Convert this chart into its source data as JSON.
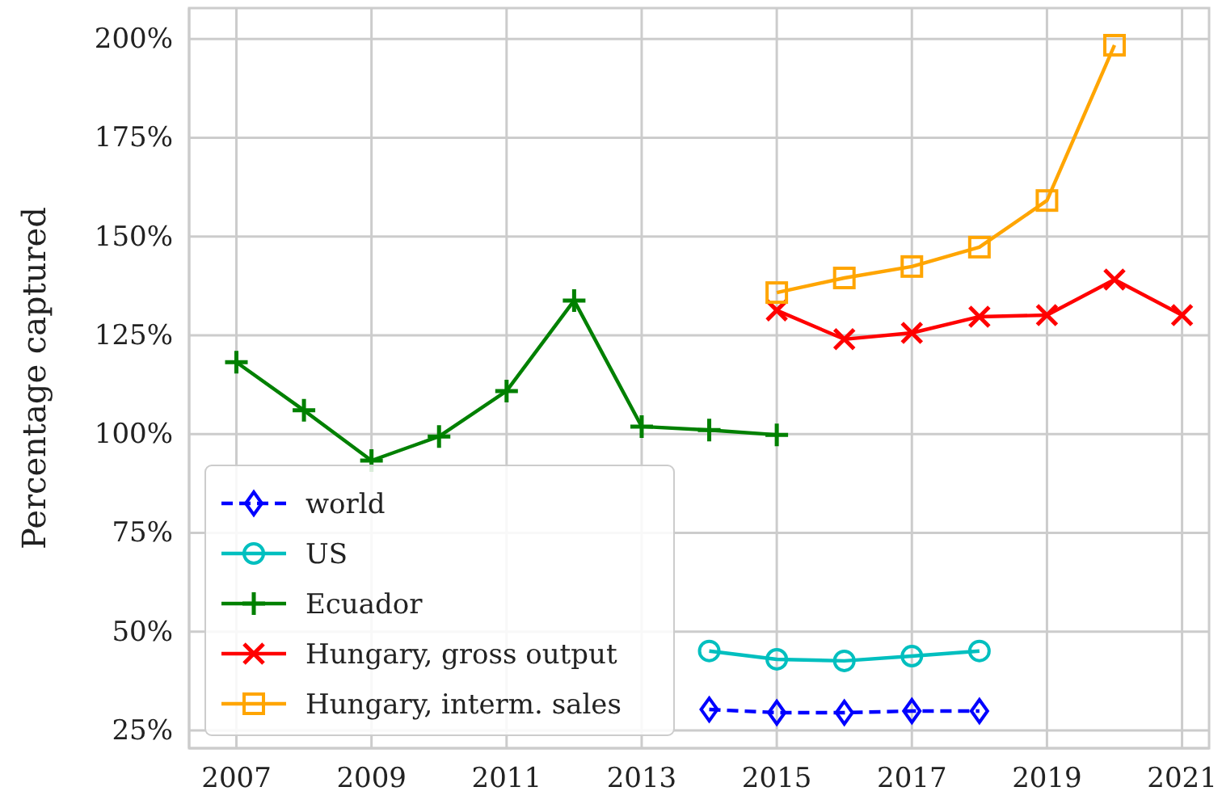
{
  "chart_data": {
    "type": "line",
    "ylabel": "Percentage captured",
    "xlim": [
      2006.3,
      2021.4
    ],
    "ylim": [
      20.5,
      207.8
    ],
    "xticks": [
      2007,
      2009,
      2011,
      2013,
      2015,
      2017,
      2019,
      2021
    ],
    "yticks": [
      {
        "value": 25,
        "label": "25%"
      },
      {
        "value": 50,
        "label": "50%"
      },
      {
        "value": 75,
        "label": "75%"
      },
      {
        "value": 100,
        "label": "100%"
      },
      {
        "value": 125,
        "label": "125%"
      },
      {
        "value": 150,
        "label": "150%"
      },
      {
        "value": 175,
        "label": "175%"
      },
      {
        "value": 200,
        "label": "200%"
      }
    ],
    "grid": true,
    "legend": "bottom left",
    "series": [
      {
        "name": "world",
        "color": "#0000ff",
        "marker": "diamond",
        "line_style": "dashed",
        "x": [
          2014,
          2015,
          2016,
          2017,
          2018
        ],
        "values": [
          30.3,
          29.5,
          29.5,
          29.9,
          29.9
        ]
      },
      {
        "name": "US",
        "color": "#00bfbf",
        "marker": "circle",
        "x": [
          2014,
          2015,
          2016,
          2017,
          2018
        ],
        "values": [
          45.1,
          43,
          42.6,
          43.8,
          45.1
        ]
      },
      {
        "name": "Ecuador",
        "color": "#008000",
        "marker": "plus",
        "x": [
          2007,
          2008,
          2009,
          2010,
          2011,
          2012,
          2013,
          2014,
          2015
        ],
        "values": [
          118.2,
          106,
          93.3,
          99.4,
          110.9,
          133.8,
          101.9,
          101,
          99.8
        ]
      },
      {
        "name": "Hungary, gross output",
        "color": "#ff0000",
        "marker": "cross",
        "x": [
          2015,
          2016,
          2017,
          2018,
          2019,
          2020,
          2021
        ],
        "values": [
          131.3,
          124,
          125.6,
          129.7,
          130.1,
          139.1,
          130.1
        ]
      },
      {
        "name": "Hungary, interm. sales",
        "color": "#ffa500",
        "marker": "square",
        "x": [
          2015,
          2016,
          2017,
          2018,
          2019,
          2020
        ],
        "values": [
          135.8,
          139.5,
          142.4,
          147.3,
          159.1,
          198.4
        ]
      }
    ]
  }
}
